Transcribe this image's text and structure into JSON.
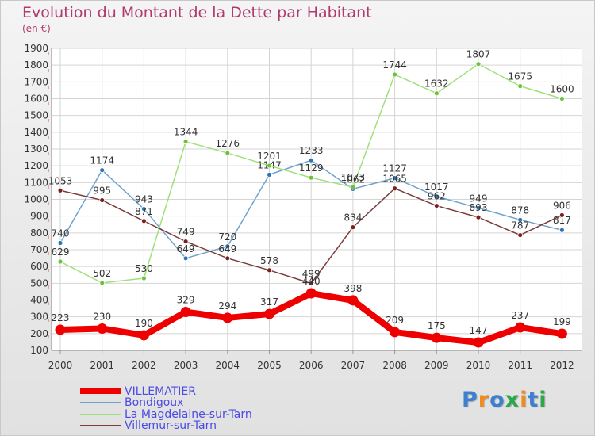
{
  "title": "Evolution du Montant de la Dette par Habitant",
  "subtitle": "(en €)",
  "logo": "Proxiti",
  "logo_colors": [
    "#3d7fd0",
    "#f08c1c",
    "#3d7fd0",
    "#2aa84a",
    "#f08c1c",
    "#3d7fd0",
    "#2aa84a"
  ],
  "chart_data": {
    "type": "line",
    "x": [
      "2000",
      "2001",
      "2002",
      "2003",
      "2004",
      "2005",
      "2006",
      "2007",
      "2008",
      "2009",
      "2010",
      "2011",
      "2012"
    ],
    "ylim": [
      100,
      1900
    ],
    "yticks": [
      100,
      200,
      300,
      400,
      500,
      600,
      700,
      800,
      900,
      1000,
      1100,
      1200,
      1300,
      1400,
      1500,
      1600,
      1700,
      1800,
      1900
    ],
    "grid": true,
    "legend_position": "bottom-left",
    "series": [
      {
        "name": "VILLEMATIER",
        "color": "#ee0000",
        "dot_color": "#ee0000",
        "thick": true,
        "values": [
          223,
          230,
          190,
          329,
          294,
          317,
          440,
          398,
          209,
          175,
          147,
          237,
          199
        ]
      },
      {
        "name": "Bondigoux",
        "color": "#6fa3cc",
        "dot_color": "#2e75b6",
        "thick": false,
        "values": [
          740,
          1174,
          943,
          649,
          720,
          1147,
          1233,
          1062,
          1127,
          1017,
          949,
          878,
          817
        ]
      },
      {
        "name": "La Magdelaine-sur-Tarn",
        "color": "#9ee07a",
        "dot_color": "#6cc23a",
        "thick": false,
        "values": [
          629,
          502,
          530,
          1344,
          1276,
          1201,
          1129,
          1073,
          1744,
          1632,
          1807,
          1675,
          1600
        ]
      },
      {
        "name": "Villemur-sur-Tarn",
        "color": "#7a3b3b",
        "dot_color": "#7a2020",
        "thick": false,
        "values": [
          1053,
          995,
          871,
          749,
          649,
          578,
          499,
          834,
          1065,
          962,
          893,
          787,
          906
        ]
      }
    ]
  }
}
